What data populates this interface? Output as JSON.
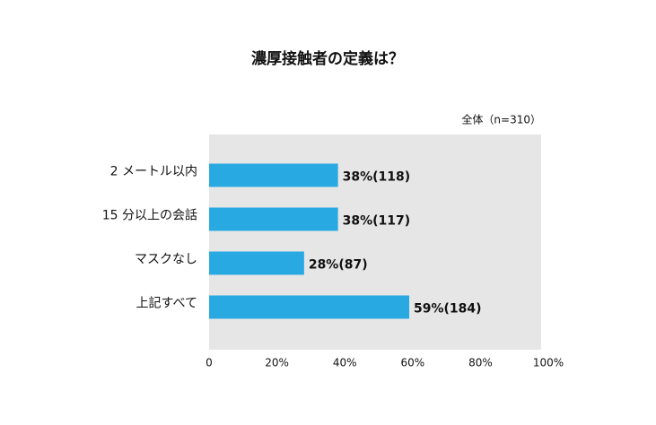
{
  "chart_data": {
    "type": "hbar",
    "title": "濃厚接触者の定義は？",
    "subtitle": "全体（n=310）",
    "categories": [
      "2 メートル以内",
      "15 分以上の会話",
      "マスクなし",
      "上記すべて"
    ],
    "values": [
      38,
      38,
      28,
      59
    ],
    "value_labels": [
      "38%(118)",
      "38%(117)",
      "28%(87)",
      "59%(184)"
    ],
    "color": "#29a9e1",
    "xlim": [
      0,
      100
    ],
    "xticks": [
      0,
      {
        "value": 20,
        "label": "20%"
      },
      {
        "value": 40,
        "label": "40%"
      },
      {
        "value": 60,
        "label": "60%"
      },
      {
        "value": 80,
        "label": "80%"
      },
      {
        "value": 100,
        "label": "100%"
      }
    ]
  }
}
